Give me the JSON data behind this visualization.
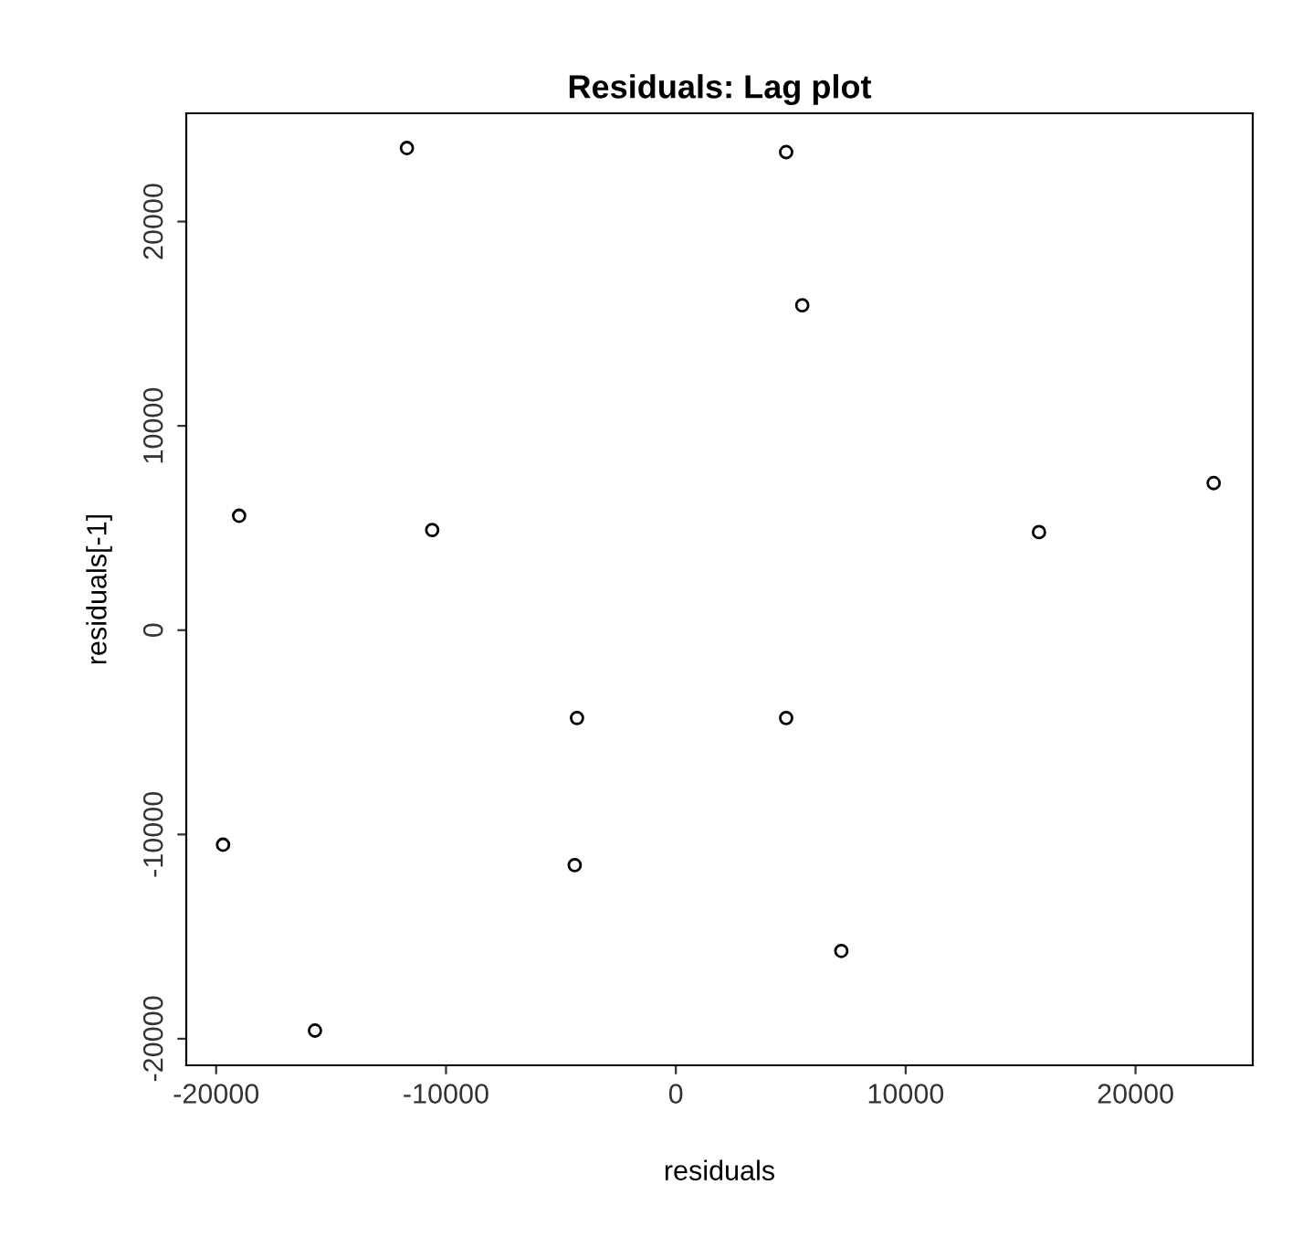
{
  "chart_data": {
    "type": "scatter",
    "title": "Residuals: Lag plot",
    "xlabel": "residuals",
    "ylabel": "residuals[-1]",
    "x": [
      -11700,
      4800,
      5500,
      23400,
      -19000,
      -10600,
      15800,
      -4300,
      4800,
      -19700,
      -4400,
      7200,
      -15700
    ],
    "values": [
      23600,
      23400,
      15900,
      7200,
      5600,
      4900,
      4800,
      -4300,
      -4300,
      -10500,
      -11500,
      -15700,
      -19600
    ],
    "color": "#000000",
    "marker": "circle",
    "xlim": [
      -21300,
      25100
    ],
    "ylim": [
      -21300,
      25300
    ],
    "xticks": [
      -20000,
      -10000,
      0,
      10000,
      20000
    ],
    "yticks": [
      -20000,
      -10000,
      0,
      10000,
      20000
    ],
    "grid": false
  }
}
